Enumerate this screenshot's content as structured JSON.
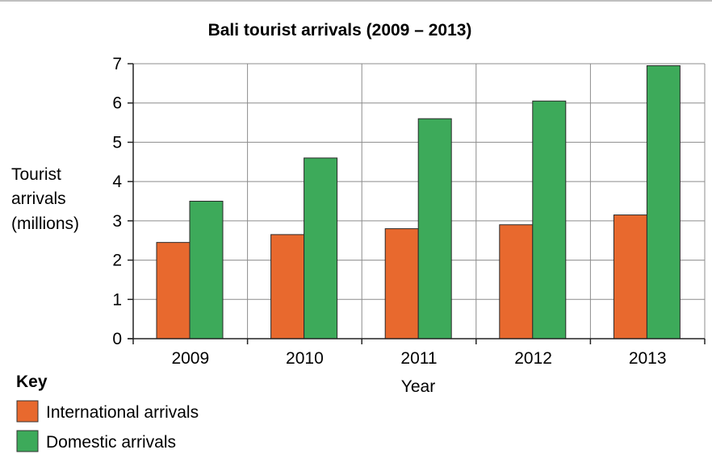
{
  "chart_data": {
    "type": "bar",
    "title": "Bali tourist arrivals (2009 – 2013)",
    "xlabel": "Year",
    "ylabel": [
      "Tourist",
      "arrivals",
      "(millions)"
    ],
    "categories": [
      "2009",
      "2010",
      "2011",
      "2012",
      "2013"
    ],
    "series": [
      {
        "name": "International arrivals",
        "values": [
          2.45,
          2.65,
          2.8,
          2.9,
          3.15
        ]
      },
      {
        "name": "Domestic arrivals",
        "values": [
          3.5,
          4.6,
          5.6,
          6.05,
          6.95
        ]
      }
    ],
    "ylim": [
      0,
      7
    ],
    "yticks": [
      0,
      1,
      2,
      3,
      4,
      5,
      6,
      7
    ],
    "grid": true,
    "legend_title": "Key",
    "legend_position": "bottom-left",
    "colors": {
      "international": "#e8692e",
      "domestic": "#3daa5a"
    }
  }
}
